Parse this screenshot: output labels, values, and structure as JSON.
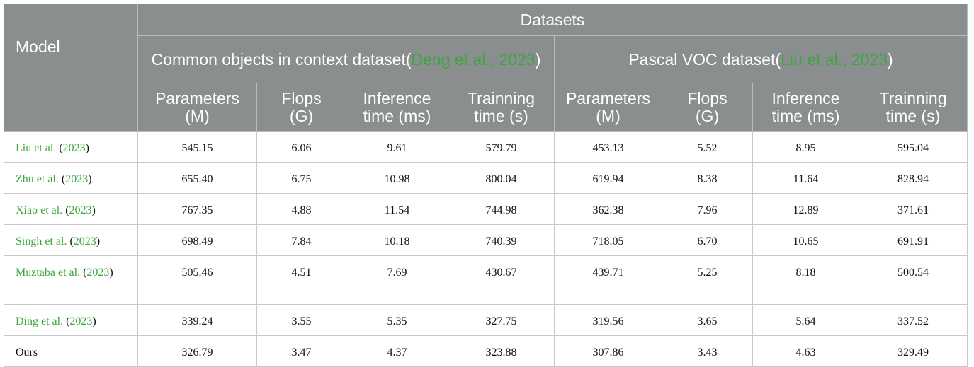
{
  "table": {
    "model_header": "Model",
    "datasets_header": "Datasets",
    "groups": [
      [
        {
          "text": "Common objects in context dataset",
          "cite": false
        },
        {
          "text": "(",
          "cite": false
        },
        {
          "text": "Deng et al., 2023",
          "cite": true
        },
        {
          "text": ")",
          "cite": false
        }
      ],
      [
        {
          "text": "Pascal VOC dataset",
          "cite": false
        },
        {
          "text": "(",
          "cite": false
        },
        {
          "text": "Liu et al., 2023",
          "cite": true
        },
        {
          "text": ")",
          "cite": false
        }
      ]
    ],
    "columns": [
      [
        "Parameters",
        "(M)"
      ],
      [
        "Flops",
        "(G)"
      ],
      [
        "Inference",
        "time (ms)"
      ],
      [
        "Trainning",
        "time (s)"
      ],
      [
        "Parameters",
        "(M)"
      ],
      [
        "Flops",
        "(G)"
      ],
      [
        "Inference",
        "time (ms)"
      ],
      [
        "Trainning",
        "time (s)"
      ]
    ],
    "rows": [
      {
        "model": [
          {
            "text": "Liu et al.",
            "cite": true
          },
          {
            "text": " (",
            "cite": false
          },
          {
            "text": "2023",
            "cite": true
          },
          {
            "text": ")",
            "cite": false
          }
        ],
        "values": [
          "545.15",
          "6.06",
          "9.61",
          "579.79",
          "453.13",
          "5.52",
          "8.95",
          "595.04"
        ]
      },
      {
        "model": [
          {
            "text": "Zhu et al.",
            "cite": true
          },
          {
            "text": " (",
            "cite": false
          },
          {
            "text": "2023",
            "cite": true
          },
          {
            "text": ")",
            "cite": false
          }
        ],
        "values": [
          "655.40",
          "6.75",
          "10.98",
          "800.04",
          "619.94",
          "8.38",
          "11.64",
          "828.94"
        ]
      },
      {
        "model": [
          {
            "text": "Xiao et al.",
            "cite": true
          },
          {
            "text": " (",
            "cite": false
          },
          {
            "text": "2023",
            "cite": true
          },
          {
            "text": ")",
            "cite": false
          }
        ],
        "values": [
          "767.35",
          "4.88",
          "11.54",
          "744.98",
          "362.38",
          "7.96",
          "12.89",
          "371.61"
        ]
      },
      {
        "model": [
          {
            "text": "Singh et al.",
            "cite": true
          },
          {
            "text": " (",
            "cite": false
          },
          {
            "text": "2023",
            "cite": true
          },
          {
            "text": ")",
            "cite": false
          }
        ],
        "values": [
          "698.49",
          "7.84",
          "10.18",
          "740.39",
          "718.05",
          "6.70",
          "10.65",
          "691.91"
        ]
      },
      {
        "model": [
          {
            "text": "Muztaba et al.",
            "cite": true
          },
          {
            "text": " (",
            "cite": false
          },
          {
            "text": "2023",
            "cite": true
          },
          {
            "text": ")",
            "cite": false
          }
        ],
        "values": [
          "505.46",
          "4.51",
          "7.69",
          "430.67",
          "439.71",
          "5.25",
          "8.18",
          "500.54"
        ]
      },
      {
        "model": [
          {
            "text": "Ding et al.",
            "cite": true
          },
          {
            "text": " (",
            "cite": false
          },
          {
            "text": "2023",
            "cite": true
          },
          {
            "text": ")",
            "cite": false
          }
        ],
        "values": [
          "339.24",
          "3.55",
          "5.35",
          "327.75",
          "319.56",
          "3.65",
          "5.64",
          "337.52"
        ]
      },
      {
        "model": [
          {
            "text": "Ours",
            "cite": false
          }
        ],
        "values": [
          "326.79",
          "3.47",
          "4.37",
          "323.88",
          "307.86",
          "3.43",
          "4.63",
          "329.49"
        ]
      }
    ]
  }
}
